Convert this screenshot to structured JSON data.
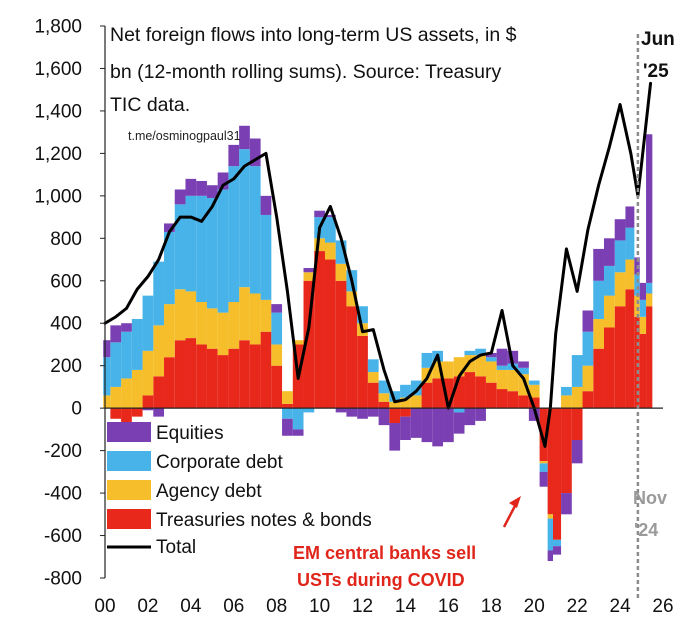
{
  "chart_data": {
    "type": "area",
    "title_lines": [
      "Net foreign flows into long-term US assets, in $",
      "bn (12-month rolling sums). Source:  Treasury",
      "TIC data."
    ],
    "watermark": "t.me/osminogpaul31",
    "xlabel": "",
    "ylabel": "",
    "xlim": [
      2000,
      2026
    ],
    "ylim": [
      -800,
      1800
    ],
    "y_ticks": [
      1800,
      1600,
      1400,
      1200,
      1000,
      800,
      600,
      400,
      200,
      0,
      -200,
      -400,
      -600,
      -800
    ],
    "y_tick_labels": [
      "1,800",
      "1,600",
      "1,400",
      "1,200",
      "1,000",
      "800",
      "600",
      "400",
      "200",
      "0",
      "-200",
      "-400",
      "-600",
      "-800"
    ],
    "x_ticks": [
      2000,
      2002,
      2004,
      2006,
      2008,
      2010,
      2012,
      2014,
      2016,
      2018,
      2020,
      2022,
      2024,
      2026
    ],
    "x_tick_labels": [
      "00",
      "02",
      "04",
      "06",
      "08",
      "10",
      "12",
      "14",
      "16",
      "18",
      "20",
      "22",
      "24",
      "26"
    ],
    "x": [
      2000.0,
      2000.5,
      2001.0,
      2001.5,
      2002.0,
      2002.5,
      2003.0,
      2003.5,
      2004.0,
      2004.5,
      2005.0,
      2005.5,
      2006.0,
      2006.5,
      2007.0,
      2007.5,
      2008.0,
      2008.5,
      2009.0,
      2009.5,
      2010.0,
      2010.5,
      2011.0,
      2011.5,
      2012.0,
      2012.5,
      2013.0,
      2013.5,
      2014.0,
      2014.5,
      2015.0,
      2015.5,
      2016.0,
      2016.5,
      2017.0,
      2017.5,
      2018.0,
      2018.5,
      2019.0,
      2019.5,
      2020.0,
      2020.5,
      2020.75,
      2021.0,
      2021.5,
      2022.0,
      2022.5,
      2023.0,
      2023.5,
      2024.0,
      2024.5,
      2024.83,
      2025.0,
      2025.42
    ],
    "series": [
      {
        "name": "Treasuries notes & bonds",
        "color": "#e8281b",
        "values": [
          0,
          -50,
          -80,
          -40,
          60,
          150,
          240,
          320,
          330,
          300,
          280,
          250,
          280,
          320,
          300,
          360,
          200,
          20,
          300,
          600,
          740,
          700,
          600,
          480,
          340,
          120,
          30,
          -70,
          -40,
          0,
          120,
          140,
          140,
          150,
          170,
          150,
          120,
          90,
          80,
          60,
          50,
          -250,
          -500,
          -620,
          -400,
          -150,
          80,
          280,
          380,
          480,
          560,
          430,
          350,
          480
        ]
      },
      {
        "name": "Agency debt",
        "color": "#f5be2a",
        "values": [
          60,
          100,
          140,
          180,
          210,
          240,
          250,
          240,
          220,
          200,
          190,
          200,
          220,
          250,
          240,
          150,
          100,
          60,
          20,
          40,
          60,
          80,
          80,
          70,
          60,
          50,
          40,
          30,
          50,
          60,
          70,
          80,
          80,
          90,
          80,
          100,
          100,
          90,
          100,
          100,
          60,
          -10,
          -20,
          0,
          60,
          100,
          120,
          140,
          150,
          160,
          140,
          100,
          80,
          60
        ]
      },
      {
        "name": "Corporate debt",
        "color": "#48b3e8",
        "values": [
          180,
          210,
          220,
          240,
          260,
          300,
          340,
          400,
          450,
          500,
          520,
          580,
          640,
          650,
          600,
          400,
          150,
          -50,
          -100,
          -20,
          100,
          120,
          110,
          100,
          80,
          60,
          60,
          50,
          60,
          70,
          70,
          50,
          0,
          -20,
          20,
          30,
          20,
          20,
          30,
          30,
          20,
          -40,
          -150,
          -30,
          40,
          150,
          160,
          180,
          140,
          150,
          150,
          100,
          80,
          50
        ]
      },
      {
        "name": "Equities",
        "color": "#7a3fb3",
        "values": [
          80,
          80,
          40,
          0,
          -10,
          -40,
          40,
          70,
          80,
          70,
          60,
          80,
          100,
          110,
          130,
          90,
          40,
          -80,
          -30,
          20,
          30,
          10,
          -20,
          -40,
          -50,
          -40,
          -80,
          -130,
          -110,
          -140,
          -160,
          -180,
          -160,
          -100,
          -80,
          -60,
          20,
          80,
          60,
          30,
          -60,
          -70,
          -50,
          -40,
          -100,
          -110,
          100,
          150,
          130,
          100,
          100,
          80,
          80,
          700
        ]
      },
      {
        "name": "Total",
        "color": "#000000",
        "values": [
          400,
          430,
          470,
          560,
          620,
          700,
          830,
          900,
          900,
          880,
          950,
          1050,
          1080,
          1140,
          1170,
          1200,
          900,
          550,
          140,
          380,
          850,
          950,
          800,
          600,
          360,
          370,
          180,
          30,
          40,
          80,
          140,
          250,
          0,
          150,
          220,
          250,
          260,
          460,
          200,
          140,
          0,
          -180,
          0,
          350,
          750,
          550,
          840,
          1050,
          1230,
          1430,
          1200,
          1000,
          1150,
          1530
        ]
      }
    ],
    "legend": {
      "position": "bottom-left",
      "entries": [
        "Equities",
        "Corporate debt",
        "Agency debt",
        "Treasuries notes & bonds",
        "Total"
      ]
    },
    "annotations": {
      "covid_line1": "EM central banks sell",
      "covid_line2": "USTs during COVID",
      "jun_line1": "Jun",
      "jun_line2": "'25",
      "nov_line1": "Nov",
      "nov_line2": "'24"
    },
    "nov_marker_x": 2024.83,
    "grid": false
  }
}
